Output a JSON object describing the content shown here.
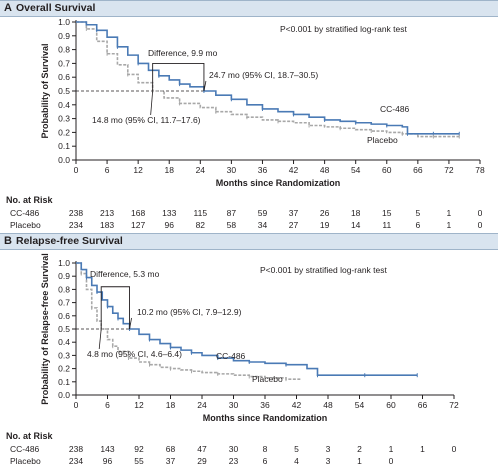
{
  "panels": [
    {
      "letter": "A",
      "title": "Overall Survival",
      "ylabel": "Probability of Survival",
      "xlabel": "Months since Randomization",
      "pvalue_text": "P<0.001 by stratified log-rank test",
      "annotations": {
        "difference": "Difference, 9.9 mo",
        "treatment_median": "24.7 mo (95% CI, 18.7–30.5)",
        "placebo_median": "14.8 mo (95% CI, 11.7–17.6)",
        "treatment_label": "CC-486",
        "placebo_label": "Placebo"
      },
      "risk_title": "No. at Risk",
      "risk_rows": [
        {
          "label": "CC-486",
          "values": [
            "238",
            "213",
            "168",
            "133",
            "115",
            "87",
            "59",
            "37",
            "26",
            "18",
            "15",
            "5",
            "1",
            "0"
          ]
        },
        {
          "label": "Placebo",
          "values": [
            "234",
            "183",
            "127",
            "96",
            "82",
            "58",
            "34",
            "27",
            "19",
            "14",
            "11",
            "6",
            "1",
            "0"
          ]
        }
      ]
    },
    {
      "letter": "B",
      "title": "Relapse-free Survival",
      "ylabel": "Probability of Relapse-free Survival",
      "xlabel": "Months since Randomization",
      "pvalue_text": "P<0.001 by stratified log-rank test",
      "annotations": {
        "difference": "Difference, 5.3 mo",
        "treatment_median": "10.2 mo (95% CI, 7.9–12.9)",
        "placebo_median": "4.8 mo (95% CI, 4.6–6.4)",
        "treatment_label": "CC-486",
        "placebo_label": "Placebo"
      },
      "risk_title": "No. at Risk",
      "risk_rows": [
        {
          "label": "CC-486",
          "values": [
            "238",
            "143",
            "92",
            "68",
            "47",
            "30",
            "8",
            "5",
            "3",
            "2",
            "1",
            "1",
            "0"
          ]
        },
        {
          "label": "Placebo",
          "values": [
            "234",
            "96",
            "55",
            "37",
            "29",
            "23",
            "6",
            "4",
            "3",
            "1",
            "0"
          ]
        }
      ]
    }
  ],
  "colors": {
    "treatment": "#4a7ab5",
    "placebo": "#a8a8a8",
    "axis": "#231f20"
  },
  "chart_data": [
    {
      "type": "line",
      "title": "Overall Survival",
      "xlabel": "Months since Randomization",
      "ylabel": "Probability of Survival",
      "xlim": [
        0,
        78
      ],
      "ylim": [
        0,
        1.0
      ],
      "xticks": [
        0,
        6,
        12,
        18,
        24,
        30,
        36,
        42,
        48,
        54,
        60,
        66,
        72,
        78
      ],
      "yticks": [
        0,
        0.1,
        0.2,
        0.3,
        0.4,
        0.5,
        0.6,
        0.7,
        0.8,
        0.9,
        1.0
      ],
      "series": [
        {
          "name": "CC-486",
          "x": [
            0,
            2,
            4,
            6,
            8,
            10,
            12,
            14,
            16,
            18,
            20,
            22,
            24.7,
            27,
            30,
            33,
            36,
            39,
            42,
            45,
            48,
            51,
            54,
            57,
            60,
            63,
            64,
            66,
            69,
            72,
            74
          ],
          "y": [
            1.0,
            0.98,
            0.94,
            0.89,
            0.82,
            0.76,
            0.7,
            0.65,
            0.61,
            0.58,
            0.55,
            0.53,
            0.5,
            0.47,
            0.44,
            0.4,
            0.37,
            0.35,
            0.33,
            0.31,
            0.29,
            0.28,
            0.27,
            0.26,
            0.25,
            0.24,
            0.19,
            0.19,
            0.19,
            0.19,
            0.19
          ]
        },
        {
          "name": "Placebo",
          "x": [
            0,
            2,
            4,
            6,
            8,
            10,
            12,
            14.8,
            17,
            20,
            24,
            27,
            30,
            33,
            36,
            39,
            42,
            45,
            48,
            51,
            54,
            57,
            60,
            63,
            66,
            69,
            72,
            74
          ],
          "y": [
            1.0,
            0.95,
            0.86,
            0.77,
            0.69,
            0.62,
            0.56,
            0.5,
            0.45,
            0.41,
            0.38,
            0.35,
            0.33,
            0.31,
            0.29,
            0.28,
            0.27,
            0.25,
            0.24,
            0.23,
            0.22,
            0.21,
            0.2,
            0.19,
            0.17,
            0.17,
            0.17,
            0.17
          ]
        }
      ],
      "annotations": [
        "P<0.001 by stratified log-rank test",
        "Difference, 9.9 mo",
        "24.7 mo (95% CI, 18.7–30.5)",
        "14.8 mo (95% CI, 11.7–17.6)",
        "CC-486",
        "Placebo"
      ],
      "median_line_y": 0.5
    },
    {
      "type": "line",
      "title": "Relapse-free Survival",
      "xlabel": "Months since Randomization",
      "ylabel": "Probability of Relapse-free Survival",
      "xlim": [
        0,
        72
      ],
      "ylim": [
        0,
        1.0
      ],
      "xticks": [
        0,
        6,
        12,
        18,
        24,
        30,
        36,
        42,
        48,
        54,
        60,
        66,
        72
      ],
      "yticks": [
        0,
        0.1,
        0.2,
        0.3,
        0.4,
        0.5,
        0.6,
        0.7,
        0.8,
        0.9,
        1.0
      ],
      "series": [
        {
          "name": "CC-486",
          "x": [
            0,
            1,
            2,
            3,
            4,
            5,
            6,
            7,
            8,
            9,
            10.2,
            12,
            14,
            16,
            18,
            20,
            22,
            24,
            27,
            30,
            33,
            36,
            40,
            44,
            46,
            50,
            55,
            60,
            65
          ],
          "y": [
            1.0,
            0.95,
            0.89,
            0.83,
            0.78,
            0.72,
            0.67,
            0.62,
            0.58,
            0.54,
            0.5,
            0.46,
            0.42,
            0.39,
            0.36,
            0.34,
            0.32,
            0.3,
            0.28,
            0.26,
            0.25,
            0.24,
            0.23,
            0.2,
            0.15,
            0.15,
            0.15,
            0.15,
            0.15
          ]
        },
        {
          "name": "Placebo",
          "x": [
            0,
            1,
            2,
            3,
            4,
            4.8,
            6,
            7,
            8,
            10,
            12,
            14,
            16,
            18,
            20,
            22,
            24,
            27,
            30,
            33,
            36,
            40,
            43
          ],
          "y": [
            1.0,
            0.92,
            0.8,
            0.66,
            0.56,
            0.5,
            0.42,
            0.37,
            0.33,
            0.28,
            0.25,
            0.23,
            0.21,
            0.2,
            0.19,
            0.18,
            0.17,
            0.16,
            0.15,
            0.14,
            0.13,
            0.12,
            0.12
          ]
        }
      ],
      "annotations": [
        "P<0.001 by stratified log-rank test",
        "Difference, 5.3 mo",
        "10.2 mo (95% CI, 7.9–12.9)",
        "4.8 mo (95% CI, 4.6–6.4)",
        "CC-486",
        "Placebo"
      ],
      "median_line_y": 0.5
    }
  ]
}
